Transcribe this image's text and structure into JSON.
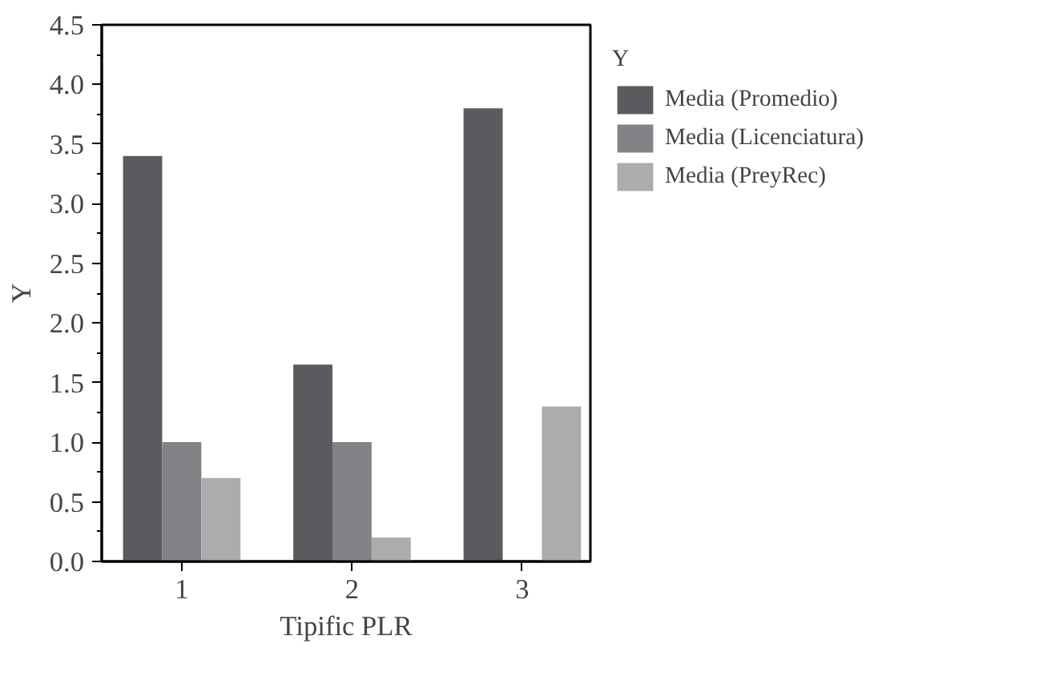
{
  "chart_data": {
    "type": "bar",
    "xlabel": "Tipific PLR",
    "ylabel": "Y",
    "legend_title": "Y",
    "categories": [
      "1",
      "2",
      "3"
    ],
    "series": [
      {
        "name": "Media (Promedio)",
        "color": "#5a5b5f",
        "values": [
          3.4,
          1.65,
          3.8
        ]
      },
      {
        "name": "Media (Licenciatura)",
        "color": "#828386",
        "values": [
          1.0,
          1.0,
          0
        ]
      },
      {
        "name": "Media (PreyRec)",
        "color": "#abacae",
        "values": [
          0.7,
          0.2,
          1.3
        ]
      }
    ],
    "ylim": [
      0,
      4.5
    ],
    "yticks": [
      {
        "value": 0,
        "label": "0.0"
      },
      {
        "value": 0.5,
        "label": "0.5"
      },
      {
        "value": 1,
        "label": "1.0"
      },
      {
        "value": 1.5,
        "label": "1.5"
      },
      {
        "value": 2,
        "label": "2.0"
      },
      {
        "value": 2.5,
        "label": "2.5"
      },
      {
        "value": 3,
        "label": "3.0"
      },
      {
        "value": 3.5,
        "label": "3.5"
      },
      {
        "value": 4,
        "label": "4.0"
      },
      {
        "value": 4.5,
        "label": "4.5"
      }
    ],
    "grid": false,
    "legend": "right"
  }
}
